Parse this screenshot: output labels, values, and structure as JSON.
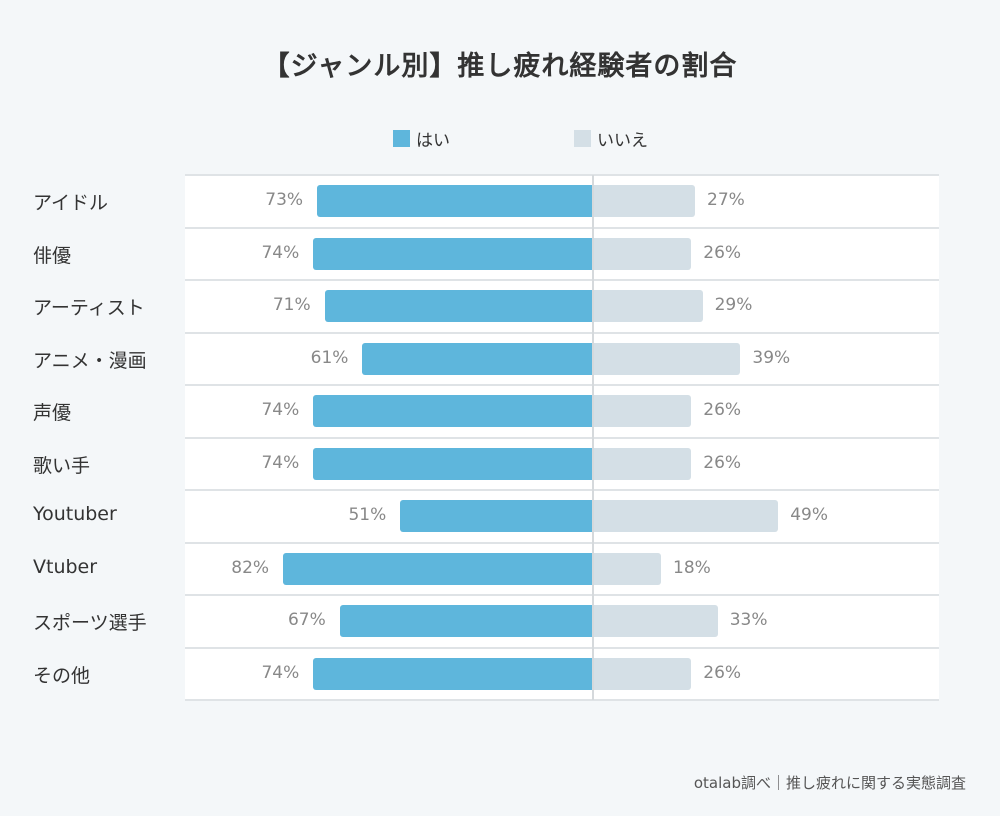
{
  "chart_data": {
    "type": "bar",
    "orientation": "horizontal-diverging-stacked",
    "title": "【ジャンル別】推し疲れ経験者の割合",
    "categories": [
      "アイドル",
      "俳優",
      "アーティスト",
      "アニメ・漫画",
      "声優",
      "歌い手",
      "Youtuber",
      "Vtuber",
      "スポーツ選手",
      "その他"
    ],
    "series": [
      {
        "name": "はい",
        "color": "#5eb6dc",
        "values": [
          73,
          74,
          71,
          61,
          74,
          74,
          51,
          82,
          67,
          74
        ]
      },
      {
        "name": "いいえ",
        "color": "#d4dfe6",
        "values": [
          27,
          26,
          29,
          39,
          26,
          26,
          49,
          18,
          33,
          26
        ]
      }
    ],
    "value_suffix": "%",
    "xlabel": "",
    "ylabel": "",
    "legend": "top-center",
    "grid": "horizontal row separators",
    "source": "otalab調べ｜推し疲れに関する実態調査"
  }
}
